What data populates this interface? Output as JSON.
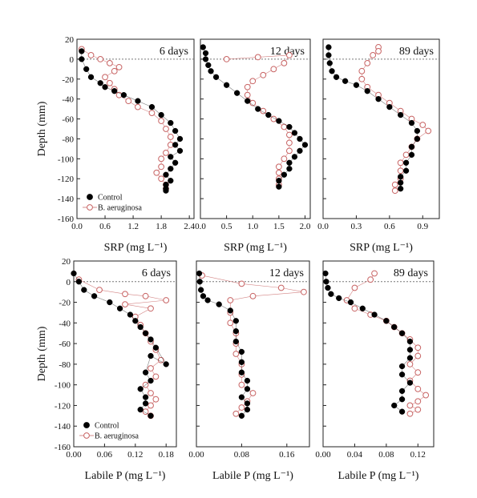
{
  "figure": {
    "ylabel": "Depth (mm)",
    "xlabel_srp": "SRP (mg L⁻¹)",
    "xlabel_labile": "Labile P (mg L⁻¹)"
  },
  "legend": {
    "control": "Control",
    "treatment": "B. aeruginosa"
  },
  "colors": {
    "control": "#000000",
    "treatment": "#c86464",
    "dotted": "#777777"
  },
  "chart_data": [
    {
      "type": "scatter",
      "row": "SRP",
      "title": "6 days",
      "xlabel": "SRP (mg L⁻¹)",
      "ylabel": "Depth (mm)",
      "xlim": [
        0,
        2.5
      ],
      "ylim": [
        -160,
        20
      ],
      "xticks": [
        "0.0",
        "0.6",
        "1.2",
        "1.8",
        "2.4"
      ],
      "yticks": [
        "20",
        "0",
        "-20",
        "-40",
        "-60",
        "-80",
        "-100",
        "-120",
        "-140",
        "-160"
      ],
      "series": [
        {
          "name": "Control",
          "marker": "filled",
          "x": [
            0.1,
            0.1,
            0.2,
            0.3,
            0.5,
            0.6,
            0.8,
            1.0,
            1.3,
            1.6,
            1.8,
            2.0,
            2.1,
            2.2,
            2.1,
            2.2,
            2.0,
            2.1,
            2.0,
            1.9,
            2.0,
            1.9,
            1.9,
            1.9
          ],
          "y": [
            8,
            0,
            -10,
            -18,
            -24,
            -28,
            -32,
            -36,
            -42,
            -48,
            -56,
            -64,
            -72,
            -80,
            -86,
            -92,
            -98,
            -104,
            -110,
            -116,
            -122,
            -126,
            -130,
            -132
          ]
        },
        {
          "name": "B. aeruginosa",
          "marker": "open",
          "x": [
            0.1,
            0.3,
            0.5,
            0.7,
            0.9,
            0.8,
            0.6,
            0.7,
            0.8,
            0.9,
            1.1,
            1.3,
            1.6,
            1.8,
            1.9,
            2.0,
            2.0,
            1.9,
            1.8,
            1.8,
            1.7,
            1.8,
            1.9,
            1.9
          ],
          "y": [
            10,
            4,
            0,
            -4,
            -8,
            -12,
            -18,
            -24,
            -30,
            -36,
            -42,
            -48,
            -54,
            -62,
            -70,
            -78,
            -86,
            -94,
            -100,
            -108,
            -114,
            -120,
            -126,
            -130
          ]
        }
      ]
    },
    {
      "type": "scatter",
      "row": "SRP",
      "title": "12 days",
      "xlabel": "SRP (mg L⁻¹)",
      "ylabel": "Depth (mm)",
      "xlim": [
        0,
        2.1
      ],
      "ylim": [
        -160,
        20
      ],
      "xticks": [
        "0.0",
        "0.5",
        "1.0",
        "1.5",
        "2.0"
      ],
      "yticks": [
        "20",
        "0",
        "-20",
        "-40",
        "-60",
        "-80",
        "-100",
        "-120",
        "-140",
        "-160"
      ],
      "series": [
        {
          "name": "Control",
          "marker": "filled",
          "x": [
            0.05,
            0.1,
            0.1,
            0.15,
            0.2,
            0.3,
            0.5,
            0.7,
            0.9,
            1.1,
            1.3,
            1.5,
            1.7,
            1.8,
            1.9,
            2.0,
            1.9,
            1.8,
            1.7,
            1.7,
            1.6,
            1.5,
            1.5
          ],
          "y": [
            12,
            6,
            0,
            -6,
            -12,
            -18,
            -26,
            -34,
            -42,
            -50,
            -56,
            -62,
            -68,
            -74,
            -80,
            -86,
            -92,
            -98,
            -104,
            -110,
            -116,
            -122,
            -128
          ]
        },
        {
          "name": "B. aeruginosa",
          "marker": "open",
          "x": [
            0.5,
            1.1,
            1.7,
            1.6,
            1.4,
            1.2,
            1.0,
            0.9,
            0.9,
            1.0,
            1.2,
            1.4,
            1.6,
            1.7,
            1.7,
            1.7,
            1.6,
            1.5,
            1.5,
            1.5,
            1.5
          ],
          "y": [
            0,
            2,
            4,
            -4,
            -10,
            -16,
            -22,
            -28,
            -36,
            -44,
            -52,
            -60,
            -68,
            -76,
            -84,
            -92,
            -100,
            -108,
            -114,
            -120,
            -126
          ]
        }
      ]
    },
    {
      "type": "scatter",
      "row": "SRP",
      "title": "89 days",
      "xlabel": "SRP (mg L⁻¹)",
      "ylabel": "Depth (mm)",
      "xlim": [
        0,
        1.05
      ],
      "ylim": [
        -160,
        20
      ],
      "xticks": [
        "0.0",
        "0.3",
        "0.6",
        "0.9"
      ],
      "yticks": [
        "20",
        "0",
        "-20",
        "-40",
        "-60",
        "-80",
        "-100",
        "-120",
        "-140",
        "-160"
      ],
      "series": [
        {
          "name": "Control",
          "marker": "filled",
          "x": [
            0.05,
            0.05,
            0.06,
            0.08,
            0.12,
            0.2,
            0.3,
            0.4,
            0.5,
            0.6,
            0.7,
            0.8,
            0.85,
            0.85,
            0.8,
            0.8,
            0.75,
            0.75,
            0.7,
            0.7,
            0.7
          ],
          "y": [
            12,
            4,
            -4,
            -12,
            -18,
            -22,
            -26,
            -32,
            -40,
            -48,
            -56,
            -64,
            -72,
            -80,
            -88,
            -96,
            -104,
            -112,
            -118,
            -124,
            -130
          ]
        },
        {
          "name": "B. aeruginosa",
          "marker": "open",
          "x": [
            0.5,
            0.5,
            0.45,
            0.4,
            0.35,
            0.35,
            0.4,
            0.5,
            0.6,
            0.7,
            0.8,
            0.9,
            0.95,
            0.85,
            0.8,
            0.75,
            0.7,
            0.7,
            0.7,
            0.65,
            0.65
          ],
          "y": [
            12,
            8,
            4,
            -4,
            -12,
            -20,
            -28,
            -36,
            -44,
            -52,
            -60,
            -66,
            -72,
            -80,
            -88,
            -96,
            -104,
            -112,
            -120,
            -126,
            -132
          ]
        }
      ]
    },
    {
      "type": "scatter",
      "row": "Labile P",
      "title": "6 days",
      "xlabel": "Labile P (mg L⁻¹)",
      "ylabel": "Depth (mm)",
      "xlim": [
        0,
        0.2
      ],
      "ylim": [
        -160,
        20
      ],
      "xticks": [
        "0.00",
        "0.06",
        "0.12",
        "0.18"
      ],
      "yticks": [
        "20",
        "0",
        "-20",
        "-40",
        "-60",
        "-80",
        "-100",
        "-120",
        "-140",
        "-160"
      ],
      "series": [
        {
          "name": "Control",
          "marker": "filled",
          "x": [
            0.0,
            0.01,
            0.02,
            0.04,
            0.07,
            0.09,
            0.11,
            0.12,
            0.13,
            0.14,
            0.15,
            0.16,
            0.18,
            0.15,
            0.14,
            0.15,
            0.13,
            0.14,
            0.14,
            0.13,
            0.15
          ],
          "y": [
            8,
            0,
            -8,
            -14,
            -20,
            -26,
            -32,
            -38,
            -44,
            -50,
            -56,
            -64,
            -80,
            -72,
            -88,
            -96,
            -104,
            -112,
            -118,
            -124,
            -130
          ]
        },
        {
          "name": "B. aeruginosa",
          "marker": "open",
          "x": [
            0.01,
            0.05,
            0.1,
            0.14,
            0.18,
            0.1,
            0.15,
            0.12,
            0.13,
            0.14,
            0.15,
            0.16,
            0.17,
            0.15,
            0.16,
            0.14,
            0.15,
            0.16,
            0.15,
            0.14,
            0.15
          ],
          "y": [
            2,
            -8,
            -12,
            -14,
            -18,
            -22,
            -26,
            -34,
            -42,
            -50,
            -58,
            -66,
            -76,
            -84,
            -92,
            -100,
            -108,
            -114,
            -120,
            -126,
            -130
          ]
        }
      ]
    },
    {
      "type": "scatter",
      "row": "Labile P",
      "title": "12 days",
      "xlabel": "Labile P (mg L⁻¹)",
      "ylabel": "Depth (mm)",
      "xlim": [
        0,
        0.2
      ],
      "ylim": [
        -160,
        20
      ],
      "xticks": [
        "0.00",
        "0.08",
        "0.16"
      ],
      "yticks": [
        "20",
        "0",
        "-20",
        "-40",
        "-60",
        "-80",
        "-100",
        "-120",
        "-140",
        "-160"
      ],
      "series": [
        {
          "name": "Control",
          "marker": "filled",
          "x": [
            0.005,
            0.006,
            0.008,
            0.012,
            0.02,
            0.04,
            0.06,
            0.07,
            0.07,
            0.07,
            0.08,
            0.08,
            0.08,
            0.09,
            0.09,
            0.08,
            0.09,
            0.09,
            0.08
          ],
          "y": [
            8,
            0,
            -8,
            -14,
            -18,
            -22,
            -28,
            -38,
            -48,
            -58,
            -68,
            -78,
            -88,
            -96,
            -104,
            -112,
            -118,
            -124,
            -130
          ]
        },
        {
          "name": "B. aeruginosa",
          "marker": "open",
          "x": [
            0.01,
            0.08,
            0.15,
            0.19,
            0.1,
            0.06,
            0.06,
            0.06,
            0.07,
            0.07,
            0.07,
            0.08,
            0.08,
            0.08,
            0.1,
            0.09,
            0.08,
            0.07
          ],
          "y": [
            6,
            -2,
            -6,
            -10,
            -14,
            -18,
            -30,
            -40,
            -50,
            -60,
            -70,
            -80,
            -90,
            -100,
            -108,
            -116,
            -122,
            -128
          ]
        }
      ]
    },
    {
      "type": "scatter",
      "row": "Labile P",
      "title": "89 days",
      "xlabel": "Labile P (mg L⁻¹)",
      "ylabel": "Depth (mm)",
      "xlim": [
        0,
        0.14
      ],
      "ylim": [
        -160,
        20
      ],
      "xticks": [
        "0.00",
        "0.04",
        "0.08",
        "0.12"
      ],
      "yticks": [
        "20",
        "0",
        "-20",
        "-40",
        "-60",
        "-80",
        "-100",
        "-120",
        "-140",
        "-160"
      ],
      "series": [
        {
          "name": "Control",
          "marker": "filled",
          "x": [
            0.003,
            0.004,
            0.006,
            0.01,
            0.02,
            0.035,
            0.05,
            0.065,
            0.08,
            0.09,
            0.1,
            0.11,
            0.11,
            0.11,
            0.1,
            0.1,
            0.11,
            0.1,
            0.1,
            0.09,
            0.1
          ],
          "y": [
            8,
            0,
            -6,
            -12,
            -16,
            -20,
            -26,
            -32,
            -38,
            -44,
            -50,
            -58,
            -66,
            -74,
            -82,
            -90,
            -98,
            -106,
            -114,
            -120,
            -126
          ]
        },
        {
          "name": "B. aeruginosa",
          "marker": "open",
          "x": [
            0.065,
            0.06,
            0.04,
            0.03,
            0.04,
            0.06,
            0.08,
            0.09,
            0.1,
            0.11,
            0.12,
            0.12,
            0.11,
            0.12,
            0.11,
            0.12,
            0.13,
            0.12,
            0.11,
            0.12,
            0.11
          ],
          "y": [
            8,
            2,
            -6,
            -18,
            -26,
            -32,
            -38,
            -44,
            -50,
            -56,
            -64,
            -72,
            -80,
            -88,
            -96,
            -104,
            -110,
            -116,
            -120,
            -124,
            -128
          ]
        }
      ]
    }
  ]
}
